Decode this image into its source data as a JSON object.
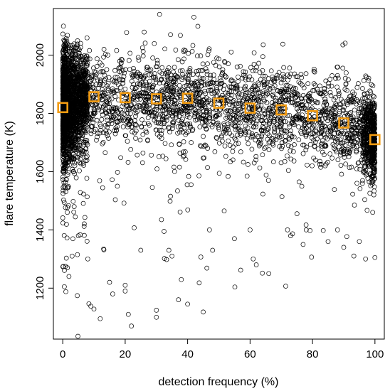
{
  "chart_data": {
    "type": "scatter",
    "title": "",
    "xlabel": "detection frequency (%)",
    "ylabel": "flare temperature (K)",
    "xlim": [
      -3,
      103
    ],
    "ylim": [
      1025,
      2160
    ],
    "x_ticks": [
      "0",
      "20",
      "40",
      "60",
      "80",
      "100"
    ],
    "y_ticks": [
      "1200",
      "1400",
      "1600",
      "1800",
      "2000"
    ],
    "grid": false,
    "legend": "none",
    "colors": {
      "points": "#000000",
      "mean_markers": "#f39c12"
    },
    "series": [
      {
        "marker": "open-square",
        "x": [
          0,
          10,
          20,
          30,
          40,
          50,
          60,
          70,
          80,
          90,
          100
        ],
        "y": [
          1820,
          1857,
          1854,
          1850,
          1852,
          1835,
          1818,
          1812,
          1792,
          1767,
          1710
        ]
      },
      {
        "marker": "open-circle",
        "note_points": "dense cloud of several thousand individual observations",
        "x": [
          0.5,
          1,
          1.5,
          2,
          3,
          5,
          8,
          9,
          10,
          12,
          15,
          16,
          20,
          20,
          21,
          22,
          25,
          30,
          30,
          31,
          34,
          35,
          40,
          42,
          45,
          47,
          48,
          55,
          60,
          61,
          62,
          66,
          72,
          73,
          77,
          78,
          85,
          88,
          90,
          95,
          97,
          100
        ],
        "y": [
          1205,
          1188,
          1270,
          1240,
          1310,
          1380,
          1300,
          1138,
          1128,
          1095,
          1220,
          1180,
          1210,
          1190,
          1110,
          1070,
          1330,
          1124,
          1100,
          2140,
          1330,
          1310,
          1145,
          2130,
          1118,
          1400,
          1330,
          1370,
          1400,
          1300,
          1280,
          1250,
          1400,
          1380,
          1350,
          1400,
          1360,
          1400,
          1340,
          1360,
          1300,
          1305
        ]
      }
    ]
  }
}
